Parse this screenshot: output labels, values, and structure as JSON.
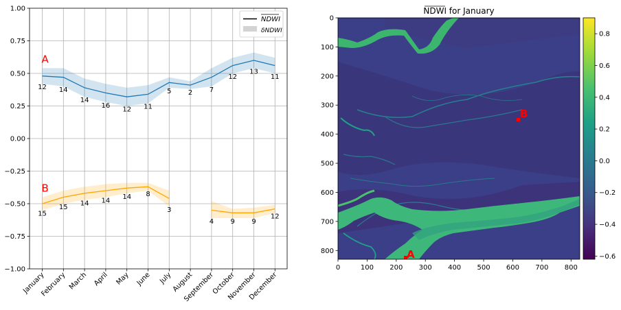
{
  "colors": {
    "series_A": "#1f77b4",
    "band_A": "#1f77b4",
    "series_B": "#ffa500",
    "band_B": "#ffa500",
    "grid": "#b0b0b0",
    "point_marker": "#ff0000"
  },
  "chart_data": [
    {
      "type": "line",
      "title": "",
      "xlabel": "",
      "ylabel": "",
      "ylim": [
        -1.0,
        1.0
      ],
      "yticks": [
        "1.00",
        "0.75",
        "0.50",
        "0.25",
        "0.00",
        "−0.25",
        "−0.50",
        "−0.75",
        "−1.00"
      ],
      "ytick_values": [
        1.0,
        0.75,
        0.5,
        0.25,
        0.0,
        -0.25,
        -0.5,
        -0.75,
        -1.0
      ],
      "grid": true,
      "categories": [
        "January",
        "February",
        "March",
        "April",
        "May",
        "June",
        "July",
        "August",
        "September",
        "October",
        "November",
        "December"
      ],
      "legend": {
        "placement": "top-right",
        "entries": [
          {
            "label": "NDWI",
            "kind": "line"
          },
          {
            "label": "δNDWI",
            "kind": "band"
          }
        ]
      },
      "series": [
        {
          "annotation": "A",
          "mean": [
            0.48,
            0.47,
            0.39,
            0.35,
            0.32,
            0.34,
            0.43,
            0.41,
            0.47,
            0.56,
            0.6,
            0.56
          ],
          "band_upper": [
            0.54,
            0.54,
            0.46,
            0.42,
            0.39,
            0.41,
            0.47,
            0.44,
            0.54,
            0.62,
            0.66,
            0.62
          ],
          "band_lower": [
            0.42,
            0.4,
            0.32,
            0.28,
            0.25,
            0.27,
            0.39,
            0.38,
            0.4,
            0.5,
            0.54,
            0.5
          ],
          "counts": [
            "12",
            "14",
            "14",
            "16",
            "12",
            "11",
            "5",
            "2",
            "7",
            "12",
            "13",
            "11"
          ]
        },
        {
          "annotation": "B",
          "mean": [
            -0.5,
            -0.45,
            -0.42,
            -0.4,
            -0.38,
            -0.37,
            -0.46,
            null,
            -0.55,
            -0.57,
            -0.57,
            -0.54
          ],
          "band_upper": [
            -0.45,
            -0.4,
            -0.37,
            -0.35,
            -0.34,
            -0.34,
            -0.4,
            null,
            -0.48,
            -0.54,
            -0.53,
            -0.51
          ],
          "band_lower": [
            -0.55,
            -0.5,
            -0.47,
            -0.45,
            -0.42,
            -0.4,
            -0.52,
            null,
            -0.61,
            -0.61,
            -0.61,
            -0.57
          ],
          "counts": [
            "15",
            "15",
            "14",
            "14",
            "14",
            "8",
            "3",
            "",
            "4",
            "9",
            "9",
            "12"
          ]
        }
      ]
    },
    {
      "type": "heatmap",
      "title": "NDWI for January",
      "xticks": [
        "0",
        "100",
        "200",
        "300",
        "400",
        "500",
        "600",
        "700",
        "800"
      ],
      "xtick_values": [
        0,
        100,
        200,
        300,
        400,
        500,
        600,
        700,
        800
      ],
      "yticks": [
        "0",
        "100",
        "200",
        "300",
        "400",
        "500",
        "600",
        "700",
        "800"
      ],
      "ytick_values": [
        0,
        100,
        200,
        300,
        400,
        500,
        600,
        700,
        800
      ],
      "xlim": [
        0,
        830
      ],
      "ylim": [
        0,
        830
      ],
      "colorbar": {
        "colormap": "viridis",
        "range": [
          -0.62,
          0.9
        ],
        "ticks": [
          "0.8",
          "0.6",
          "0.4",
          "0.2",
          "0.0",
          "−0.2",
          "−0.4",
          "−0.6"
        ],
        "tick_values": [
          0.8,
          0.6,
          0.4,
          0.2,
          0.0,
          -0.2,
          -0.4,
          -0.6
        ]
      },
      "points": [
        {
          "label": "A",
          "x": 230,
          "y": 830
        },
        {
          "label": "B",
          "x": 617,
          "y": 350
        }
      ]
    }
  ]
}
